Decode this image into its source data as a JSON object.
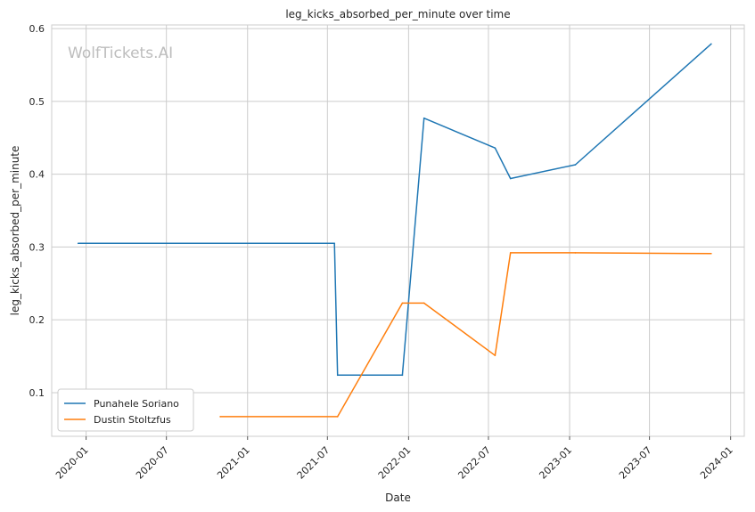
{
  "chart_data": {
    "type": "line",
    "title": "leg_kicks_absorbed_per_minute over time",
    "xlabel": "Date",
    "ylabel": "leg_kicks_absorbed_per_minute",
    "watermark": "WolfTickets.AI",
    "xlim": [
      "2019-10-15",
      "2024-02-01"
    ],
    "ylim": [
      0.04,
      0.605
    ],
    "x_ticks": [
      "2020-01",
      "2020-07",
      "2021-01",
      "2021-07",
      "2022-01",
      "2022-07",
      "2023-01",
      "2023-07",
      "2024-01"
    ],
    "y_ticks": [
      "0.1",
      "0.2",
      "0.3",
      "0.4",
      "0.5",
      "0.6"
    ],
    "grid": true,
    "legend_position": "bottom-left",
    "series": [
      {
        "name": "Punahele Soriano",
        "color": "#1f77b4",
        "points": [
          {
            "x": "2019-12-14",
            "y": 0.305
          },
          {
            "x": "2021-07-17",
            "y": 0.305
          },
          {
            "x": "2021-07-24",
            "y": 0.124
          },
          {
            "x": "2021-12-18",
            "y": 0.124
          },
          {
            "x": "2022-02-05",
            "y": 0.477
          },
          {
            "x": "2022-07-16",
            "y": 0.436
          },
          {
            "x": "2022-08-20",
            "y": 0.394
          },
          {
            "x": "2023-01-14",
            "y": 0.413
          },
          {
            "x": "2023-11-18",
            "y": 0.579
          }
        ]
      },
      {
        "name": "Dustin Stoltzfus",
        "color": "#ff7f0e",
        "points": [
          {
            "x": "2020-10-31",
            "y": 0.067
          },
          {
            "x": "2021-07-24",
            "y": 0.067
          },
          {
            "x": "2021-12-18",
            "y": 0.223
          },
          {
            "x": "2022-02-05",
            "y": 0.223
          },
          {
            "x": "2022-07-16",
            "y": 0.151
          },
          {
            "x": "2022-08-20",
            "y": 0.292
          },
          {
            "x": "2023-01-14",
            "y": 0.292
          },
          {
            "x": "2023-11-18",
            "y": 0.291
          }
        ]
      }
    ]
  }
}
